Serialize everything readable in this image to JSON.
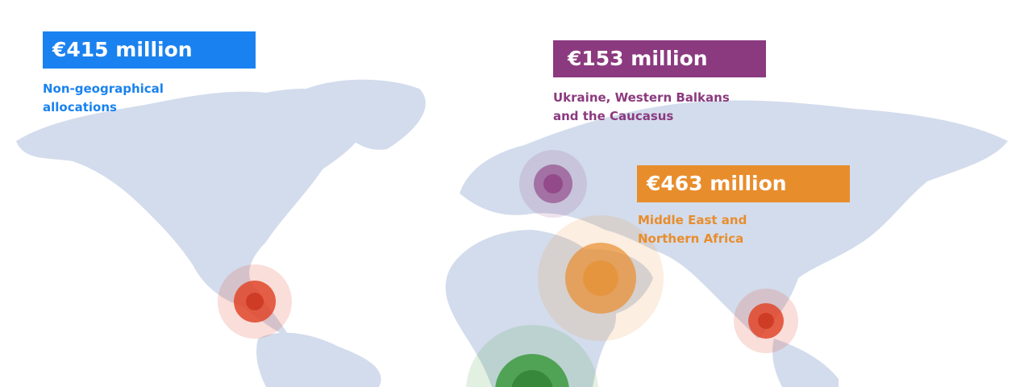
{
  "colors": {
    "land": "#d3dcec",
    "non_geographical": "#1a82f0",
    "eastern_neighbourhood": "#8b3a7f",
    "southern_neighbourhood": "#e88d2c",
    "latin_america": "#e0472a",
    "asia": "#e0472a",
    "africa": "#3d9a3f"
  },
  "allocations": [
    {
      "amount": "€415 million",
      "region": "Non-geographical allocations",
      "line1": "Non-geographical",
      "line2": "allocations"
    },
    {
      "amount": "€153 million",
      "region": "Ukraine, Western Balkans and the Caucasus",
      "line1": "Ukraine, Western Balkans",
      "line2": "and the Caucasus"
    },
    {
      "amount": "€463 million",
      "region": "Middle East and Northern Africa",
      "line1": "Middle East and",
      "line2": "Northern Africa"
    }
  ]
}
